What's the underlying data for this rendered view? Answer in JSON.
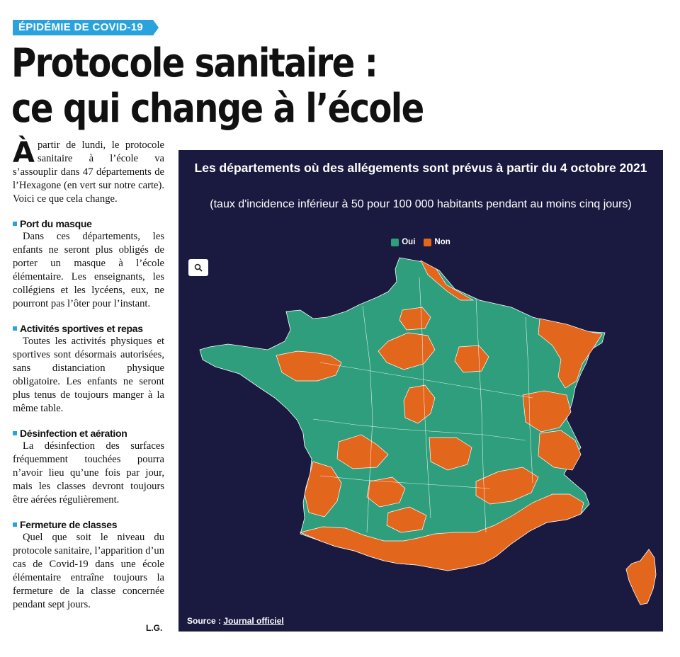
{
  "article": {
    "kicker": "ÉPIDÉMIE DE COVID-19",
    "headline_line1": "Protocole sanitaire :",
    "headline_line2": "ce qui change à l’école",
    "lead_dropcap": "À",
    "lead_text": "partir de lundi, le protocole sanitaire à l’école va s’assouplir dans 47 départements de l’Hexagone (en vert sur notre carte). Voici ce que cela change.",
    "sections": [
      {
        "title": "Port du masque",
        "body": "Dans ces départements, les enfants ne seront plus obligés de porter un masque à l’école élémentaire. Les enseignants, les collégiens et les lycéens, eux, ne pourront pas l’ôter pour l’instant."
      },
      {
        "title": "Activités sportives et repas",
        "body": "Toutes les activités physiques et sportives sont désormais autorisées, sans distanciation physique obligatoire. Les enfants ne seront plus tenus de toujours manger à la même table."
      },
      {
        "title": "Désinfection et aération",
        "body": "La désinfection des surfaces fréquemment touchées pourra n’avoir lieu qu’une fois par jour, mais les classes devront toujours être aérées régulièrement."
      },
      {
        "title": "Fermeture de classes",
        "body": "Quel que soit le niveau du protocole sanitaire, l’apparition d’un cas de Covid-19 dans une école élémentaire entraîne toujours la fermeture de la classe concernée pendant sept jours."
      }
    ],
    "signature": "L.G."
  },
  "map_card": {
    "title": "Les départements où des allégements sont prévus à partir du 4 octobre 2021",
    "subtitle": "(taux d'incidence inférieur à 50 pour 100 000 habitants pendant au moins cinq jours)",
    "legend": [
      {
        "label": "Oui",
        "color": "#2e9e7c"
      },
      {
        "label": "Non",
        "color": "#e3661d"
      }
    ],
    "background_color": "#1a1a40",
    "zoom_icon": "search-icon",
    "source_prefix": "Source : ",
    "source_link": "Journal officiel"
  }
}
